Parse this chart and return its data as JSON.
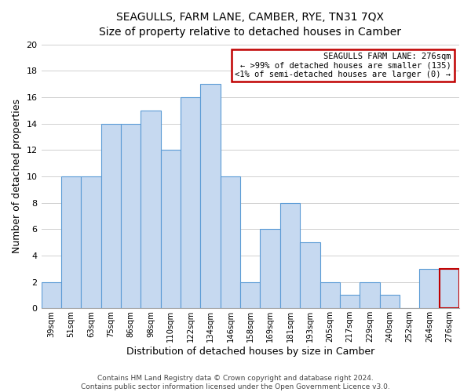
{
  "title": "SEAGULLS, FARM LANE, CAMBER, RYE, TN31 7QX",
  "subtitle": "Size of property relative to detached houses in Camber",
  "xlabel": "Distribution of detached houses by size in Camber",
  "ylabel": "Number of detached properties",
  "bin_labels": [
    "39sqm",
    "51sqm",
    "63sqm",
    "75sqm",
    "86sqm",
    "98sqm",
    "110sqm",
    "122sqm",
    "134sqm",
    "146sqm",
    "158sqm",
    "169sqm",
    "181sqm",
    "193sqm",
    "205sqm",
    "217sqm",
    "229sqm",
    "240sqm",
    "252sqm",
    "264sqm",
    "276sqm"
  ],
  "bar_heights": [
    2,
    10,
    10,
    14,
    14,
    15,
    12,
    16,
    17,
    10,
    2,
    6,
    8,
    5,
    2,
    1,
    2,
    1,
    0,
    3,
    3
  ],
  "bar_color": "#c6d9f0",
  "bar_edge_color": "#5b9bd5",
  "highlight_bin_index": 20,
  "highlight_bar_edge_color": "#c00000",
  "annotation_box_edge_color": "#c00000",
  "annotation_lines": [
    "SEAGULLS FARM LANE: 276sqm",
    "← >99% of detached houses are smaller (135)",
    "<1% of semi-detached houses are larger (0) →"
  ],
  "ylim": [
    0,
    20
  ],
  "yticks": [
    0,
    2,
    4,
    6,
    8,
    10,
    12,
    14,
    16,
    18,
    20
  ],
  "footer_lines": [
    "Contains HM Land Registry data © Crown copyright and database right 2024.",
    "Contains public sector information licensed under the Open Government Licence v3.0."
  ],
  "background_color": "#ffffff",
  "grid_color": "#d0d0d0"
}
